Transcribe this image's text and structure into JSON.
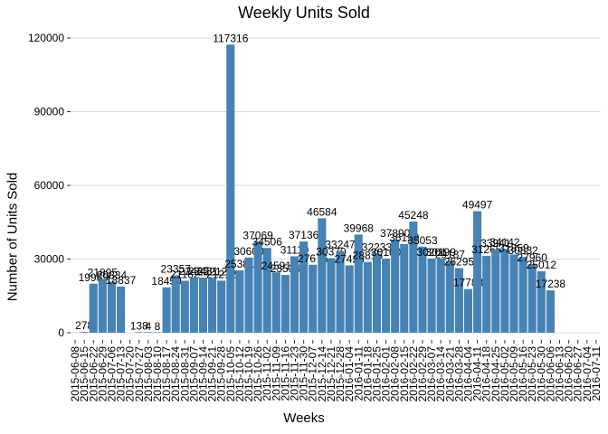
{
  "chart_data": {
    "type": "bar",
    "title": "Weekly Units Sold",
    "xlabel": "Weeks",
    "ylabel": "Number of Units Sold",
    "ylim": [
      0,
      124000
    ],
    "yticks": [
      0,
      30000,
      60000,
      90000,
      120000
    ],
    "ytick_labels": [
      "0",
      "30000",
      "60000",
      "90000",
      "120000"
    ],
    "grid": "horizontal",
    "bar_color": "#4682B4",
    "categories": [
      "2015-06-08",
      "2015-06-15",
      "2015-06-22",
      "2015-06-29",
      "2015-07-06",
      "2015-07-13",
      "2015-07-20",
      "2015-07-27",
      "2015-08-03",
      "2015-08-10",
      "2015-08-17",
      "2015-08-24",
      "2015-08-31",
      "2015-09-07",
      "2015-09-14",
      "2015-09-21",
      "2015-09-28",
      "2015-10-05",
      "2015-10-12",
      "2015-10-19",
      "2015-10-26",
      "2015-11-02",
      "2015-11-09",
      "2015-11-16",
      "2015-11-23",
      "2015-11-30",
      "2015-12-07",
      "2015-12-14",
      "2015-12-21",
      "2015-12-28",
      "2016-01-04",
      "2016-01-11",
      "2016-01-18",
      "2016-01-25",
      "2016-02-01",
      "2016-02-08",
      "2016-02-15",
      "2016-02-22",
      "2016-02-29",
      "2016-03-07",
      "2016-03-14",
      "2016-03-21",
      "2016-03-28",
      "2016-04-04",
      "2016-04-11",
      "2016-04-18",
      "2016-04-25",
      "2016-05-02",
      "2016-05-09",
      "2016-05-16",
      "2016-05-23",
      "2016-05-30",
      "2016-06-06",
      "2016-06-13",
      "2016-06-20",
      "2016-06-27",
      "2016-07-04",
      "2016-07-11"
    ],
    "values": [
      null,
      278,
      19955,
      21895,
      20834,
      18837,
      null,
      138,
      4,
      8,
      18459,
      23357,
      21162,
      22485,
      22431,
      22212,
      21212,
      117316,
      25381,
      30600,
      37069,
      34506,
      24591,
      23534,
      31110,
      37136,
      27676,
      46584,
      30370,
      33247,
      27426,
      39968,
      28815,
      32233,
      30160,
      37890,
      36129,
      45248,
      35053,
      30201,
      30199,
      29187,
      26295,
      17783,
      49497,
      31265,
      33941,
      34142,
      31859,
      30832,
      27960,
      25012,
      17238,
      null,
      null,
      null,
      null,
      null
    ],
    "value_labels": [
      "",
      "278",
      "19955",
      "21895",
      "20834",
      "18837",
      "",
      "138",
      "4",
      "8",
      "18459",
      "23357",
      "21162",
      "22485",
      "22431",
      "22212",
      "21212",
      "117316",
      "25381",
      "30600",
      "37069",
      "34506",
      "24591",
      "23534",
      "31110",
      "37136",
      "27676",
      "46584",
      "30370",
      "33247",
      "27426",
      "39968",
      "28815",
      "32233",
      "30160",
      "37890",
      "36129",
      "45248",
      "35053",
      "30201",
      "30199",
      "29187",
      "26295",
      "17783",
      "49497",
      "31265",
      "33941",
      "34142",
      "31859",
      "30832",
      "27960",
      "25012",
      "17238",
      "",
      "",
      "",
      "",
      ""
    ]
  }
}
